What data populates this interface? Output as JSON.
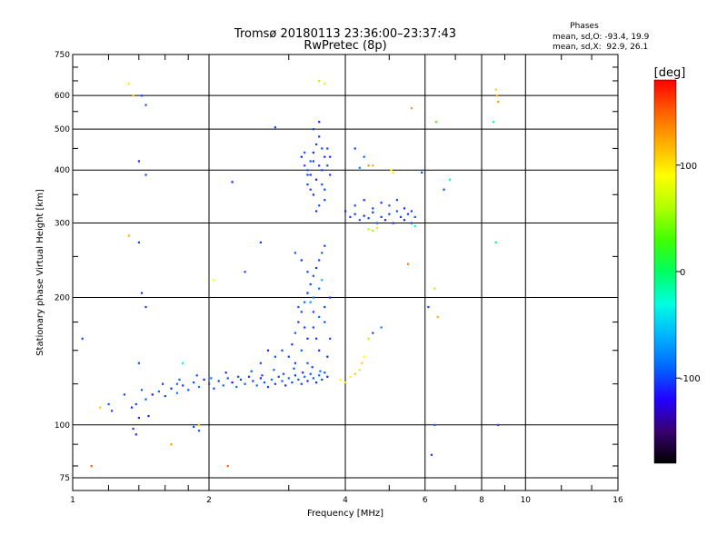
{
  "chart_data": {
    "type": "scatter",
    "title": "Tromsø 20180113 23:36:00–23:37:43",
    "subtitle": "RwPretec (8p)",
    "xlabel": "Frequency [MHz]",
    "ylabel": "Stationary phase Virtual Height [km]",
    "x_scale": "log",
    "y_scale": "log",
    "xlim": [
      1,
      16
    ],
    "ylim": [
      70,
      750
    ],
    "x_ticks": [
      1,
      2,
      4,
      6,
      8,
      10,
      16
    ],
    "x_tick_labels": [
      "1",
      "2",
      "4",
      "6",
      "8",
      "10",
      "16"
    ],
    "x_minor_ticks": [
      1.2,
      1.4,
      1.6,
      1.8,
      3,
      5,
      7,
      9,
      12,
      14
    ],
    "y_ticks": [
      75,
      100,
      200,
      300,
      400,
      500,
      600,
      750
    ],
    "y_tick_labels": [
      "75",
      "100",
      "200",
      "300",
      "400",
      "500",
      "600",
      "750"
    ],
    "y_minor_ticks": [
      80,
      90,
      125,
      150,
      175,
      250,
      350,
      450,
      550,
      650,
      700
    ],
    "grid": true,
    "phase_stats": {
      "title": "Phases",
      "line_o": "mean, sd,O: -93.4, 19.9",
      "line_x": "mean, sd,X:  92.9, 26.1"
    },
    "colorbar": {
      "title": "[deg]",
      "min": -180,
      "max": 180,
      "ticks": [
        100,
        0,
        -100
      ],
      "tick_labels": [
        "100",
        "0",
        "-100"
      ],
      "colors": [
        "#000000",
        "#3a0070",
        "#2200ff",
        "#0066ff",
        "#00b4ff",
        "#00ffe0",
        "#00ff60",
        "#40ff00",
        "#b0ff00",
        "#ffff00",
        "#ffb000",
        "#ff6000",
        "#ff0000"
      ]
    },
    "series": [
      {
        "points": [
          [
            1.35,
            110,
            -110
          ],
          [
            1.4,
            104,
            -105
          ],
          [
            1.38,
            112,
            -100
          ],
          [
            1.45,
            115,
            -95
          ],
          [
            1.5,
            118,
            -115
          ],
          [
            1.55,
            120,
            -90
          ],
          [
            1.6,
            117,
            -100
          ],
          [
            1.65,
            122,
            -110
          ],
          [
            1.7,
            119,
            -85
          ],
          [
            1.75,
            124,
            -105
          ],
          [
            1.8,
            121,
            -95
          ],
          [
            1.85,
            126,
            -100
          ],
          [
            1.9,
            123,
            -80
          ],
          [
            1.95,
            128,
            -110
          ],
          [
            2.0,
            125,
            -95
          ],
          [
            2.05,
            122,
            -100
          ],
          [
            2.1,
            127,
            -105
          ],
          [
            2.15,
            124,
            -90
          ],
          [
            2.2,
            129,
            -100
          ],
          [
            2.25,
            126,
            -115
          ],
          [
            2.3,
            123,
            -85
          ],
          [
            2.35,
            128,
            -100
          ],
          [
            2.4,
            125,
            -95
          ],
          [
            2.45,
            130,
            -105
          ],
          [
            2.5,
            127,
            -100
          ],
          [
            2.55,
            124,
            -90
          ],
          [
            2.6,
            129,
            -110
          ],
          [
            2.65,
            126,
            -95
          ],
          [
            2.7,
            123,
            -100
          ],
          [
            2.75,
            128,
            -85
          ],
          [
            2.8,
            125,
            -105
          ],
          [
            2.85,
            130,
            -100
          ],
          [
            2.9,
            127,
            -95
          ],
          [
            2.95,
            124,
            -110
          ],
          [
            3.0,
            129,
            -90
          ],
          [
            3.05,
            126,
            -100
          ],
          [
            3.1,
            131,
            -105
          ],
          [
            3.15,
            128,
            -95
          ],
          [
            3.2,
            125,
            -100
          ],
          [
            3.25,
            130,
            -85
          ],
          [
            3.3,
            127,
            -110
          ],
          [
            3.35,
            132,
            -100
          ],
          [
            3.4,
            129,
            -95
          ],
          [
            3.45,
            126,
            -105
          ],
          [
            3.5,
            131,
            -90
          ],
          [
            3.55,
            128,
            -100
          ],
          [
            3.6,
            133,
            -95
          ],
          [
            3.65,
            130,
            -110
          ],
          [
            1.3,
            118,
            -100
          ],
          [
            1.42,
            121,
            -90
          ],
          [
            1.58,
            125,
            -105
          ],
          [
            1.72,
            128,
            -95
          ],
          [
            1.88,
            131,
            -100
          ],
          [
            2.02,
            129,
            -85
          ],
          [
            2.18,
            133,
            -110
          ],
          [
            2.32,
            130,
            -100
          ],
          [
            2.48,
            134,
            -95
          ],
          [
            2.62,
            131,
            -105
          ],
          [
            2.78,
            135,
            -90
          ],
          [
            2.92,
            132,
            -100
          ],
          [
            3.08,
            136,
            -95
          ],
          [
            3.22,
            133,
            -110
          ],
          [
            3.38,
            137,
            -100
          ],
          [
            3.52,
            134,
            -85
          ],
          [
            1.36,
            98,
            -105
          ],
          [
            1.38,
            95,
            -110
          ],
          [
            1.85,
            99,
            -100
          ],
          [
            1.9,
            97,
            -95
          ],
          [
            1.22,
            108,
            -100
          ],
          [
            1.2,
            112,
            -95
          ],
          [
            3.0,
            145,
            -100
          ],
          [
            3.05,
            155,
            -110
          ],
          [
            3.1,
            165,
            -95
          ],
          [
            3.15,
            175,
            -105
          ],
          [
            3.2,
            185,
            -100
          ],
          [
            3.25,
            195,
            -90
          ],
          [
            3.3,
            205,
            -110
          ],
          [
            3.35,
            215,
            -100
          ],
          [
            3.4,
            225,
            -95
          ],
          [
            3.45,
            235,
            -105
          ],
          [
            3.5,
            245,
            -100
          ],
          [
            3.55,
            255,
            -90
          ],
          [
            3.6,
            265,
            -100
          ],
          [
            3.2,
            150,
            -95
          ],
          [
            3.3,
            160,
            -110
          ],
          [
            3.4,
            170,
            -100
          ],
          [
            3.5,
            180,
            -85
          ],
          [
            3.6,
            190,
            -100
          ],
          [
            3.7,
            200,
            -105
          ],
          [
            3.1,
            140,
            -100
          ],
          [
            3.3,
            140,
            -95
          ],
          [
            3.5,
            150,
            -110
          ],
          [
            3.7,
            160,
            -100
          ],
          [
            3.4,
            200,
            -80
          ],
          [
            3.5,
            210,
            -90
          ],
          [
            3.3,
            230,
            -100
          ],
          [
            3.2,
            245,
            -110
          ],
          [
            3.1,
            255,
            -95
          ],
          [
            3.6,
            175,
            -100
          ],
          [
            3.4,
            185,
            -105
          ],
          [
            2.9,
            150,
            -100
          ],
          [
            2.8,
            145,
            -95
          ],
          [
            2.7,
            150,
            -110
          ],
          [
            2.6,
            140,
            -100
          ],
          [
            3.55,
            220,
            -60
          ],
          [
            3.35,
            195,
            -70
          ],
          [
            3.45,
            160,
            -105
          ],
          [
            3.25,
            170,
            -100
          ],
          [
            3.15,
            190,
            -95
          ],
          [
            3.65,
            145,
            -110
          ],
          [
            3.2,
            430,
            -110
          ],
          [
            3.25,
            410,
            -100
          ],
          [
            3.3,
            390,
            -105
          ],
          [
            3.35,
            420,
            -95
          ],
          [
            3.4,
            440,
            -110
          ],
          [
            3.45,
            460,
            -100
          ],
          [
            3.5,
            480,
            -105
          ],
          [
            3.55,
            450,
            -95
          ],
          [
            3.6,
            430,
            -110
          ],
          [
            3.65,
            410,
            -100
          ],
          [
            3.7,
            390,
            -105
          ],
          [
            3.3,
            370,
            -100
          ],
          [
            3.4,
            350,
            -110
          ],
          [
            3.5,
            330,
            -95
          ],
          [
            3.6,
            360,
            -100
          ],
          [
            3.45,
            380,
            -110
          ],
          [
            3.55,
            400,
            -100
          ],
          [
            3.35,
            360,
            -105
          ],
          [
            3.25,
            440,
            -95
          ],
          [
            3.4,
            500,
            -100
          ],
          [
            3.5,
            520,
            -110
          ],
          [
            3.6,
            340,
            -100
          ],
          [
            3.45,
            320,
            -105
          ],
          [
            3.3,
            400,
            -95
          ],
          [
            3.7,
            430,
            -110
          ],
          [
            3.5,
            410,
            -100
          ],
          [
            3.4,
            420,
            -105
          ],
          [
            3.55,
            370,
            -95
          ],
          [
            3.65,
            450,
            -100
          ],
          [
            3.35,
            390,
            -110
          ],
          [
            4.0,
            320,
            -110
          ],
          [
            4.1,
            310,
            -100
          ],
          [
            4.2,
            315,
            -105
          ],
          [
            4.3,
            305,
            -95
          ],
          [
            4.4,
            312,
            -110
          ],
          [
            4.5,
            308,
            -100
          ],
          [
            4.6,
            318,
            -105
          ],
          [
            4.7,
            300,
            -95
          ],
          [
            4.8,
            310,
            -100
          ],
          [
            4.9,
            305,
            -110
          ],
          [
            5.0,
            315,
            -100
          ],
          [
            5.1,
            300,
            -105
          ],
          [
            5.2,
            320,
            -95
          ],
          [
            5.3,
            310,
            -100
          ],
          [
            5.4,
            305,
            -110
          ],
          [
            5.5,
            315,
            -100
          ],
          [
            5.6,
            320,
            -105
          ],
          [
            5.7,
            310,
            -95
          ],
          [
            4.2,
            330,
            -100
          ],
          [
            4.4,
            340,
            -110
          ],
          [
            4.6,
            325,
            -100
          ],
          [
            4.8,
            335,
            -105
          ],
          [
            5.0,
            330,
            -95
          ],
          [
            5.2,
            340,
            -100
          ],
          [
            5.4,
            325,
            -110
          ],
          [
            5.6,
            300,
            -100
          ],
          [
            4.5,
            290,
            60
          ],
          [
            4.7,
            292,
            70
          ],
          [
            4.6,
            288,
            55
          ],
          [
            5.7,
            295,
            -20
          ],
          [
            5.05,
            400,
            90
          ],
          [
            5.1,
            395,
            95
          ],
          [
            4.3,
            405,
            -80
          ],
          [
            4.6,
            410,
            120
          ],
          [
            3.9,
            128,
            90
          ],
          [
            4.0,
            126,
            100
          ],
          [
            4.1,
            130,
            95
          ],
          [
            4.2,
            132,
            110
          ],
          [
            4.3,
            135,
            100
          ],
          [
            4.35,
            140,
            105
          ],
          [
            4.4,
            145,
            90
          ],
          [
            4.5,
            160,
            60
          ],
          [
            4.6,
            165,
            -100
          ],
          [
            4.8,
            170,
            -80
          ],
          [
            1.33,
            640,
            100
          ],
          [
            1.36,
            600,
            110
          ],
          [
            1.42,
            600,
            -100
          ],
          [
            1.45,
            570,
            -95
          ],
          [
            1.4,
            420,
            -110
          ],
          [
            1.45,
            390,
            -100
          ],
          [
            1.33,
            280,
            120
          ],
          [
            1.4,
            270,
            -100
          ],
          [
            1.42,
            205,
            -105
          ],
          [
            1.45,
            190,
            -100
          ],
          [
            1.4,
            140,
            -95
          ],
          [
            1.47,
            105,
            -110
          ],
          [
            1.1,
            80,
            150
          ],
          [
            1.05,
            160,
            -100
          ],
          [
            1.15,
            110,
            110
          ],
          [
            1.7,
            125,
            -90
          ],
          [
            1.65,
            90,
            130
          ],
          [
            1.75,
            140,
            -20
          ],
          [
            1.9,
            100,
            110
          ],
          [
            2.05,
            220,
            90
          ],
          [
            2.2,
            80,
            150
          ],
          [
            2.25,
            375,
            -110
          ],
          [
            2.4,
            230,
            -100
          ],
          [
            2.6,
            270,
            -100
          ],
          [
            2.8,
            505,
            -100
          ],
          [
            3.5,
            650,
            60
          ],
          [
            3.6,
            640,
            80
          ],
          [
            4.2,
            450,
            -100
          ],
          [
            4.4,
            430,
            -90
          ],
          [
            4.5,
            410,
            130
          ],
          [
            5.6,
            560,
            130
          ],
          [
            6.1,
            190,
            -100
          ],
          [
            6.3,
            210,
            60
          ],
          [
            6.35,
            520,
            30
          ],
          [
            6.4,
            180,
            120
          ],
          [
            6.6,
            360,
            -100
          ],
          [
            6.8,
            380,
            -20
          ],
          [
            6.2,
            85,
            -100
          ],
          [
            6.3,
            100,
            -90
          ],
          [
            5.9,
            395,
            -100
          ],
          [
            5.5,
            240,
            140
          ],
          [
            8.5,
            520,
            -10
          ],
          [
            8.6,
            620,
            110
          ],
          [
            8.65,
            600,
            120
          ],
          [
            8.7,
            580,
            130
          ],
          [
            8.6,
            270,
            -10
          ],
          [
            8.7,
            100,
            -100
          ]
        ]
      }
    ]
  }
}
